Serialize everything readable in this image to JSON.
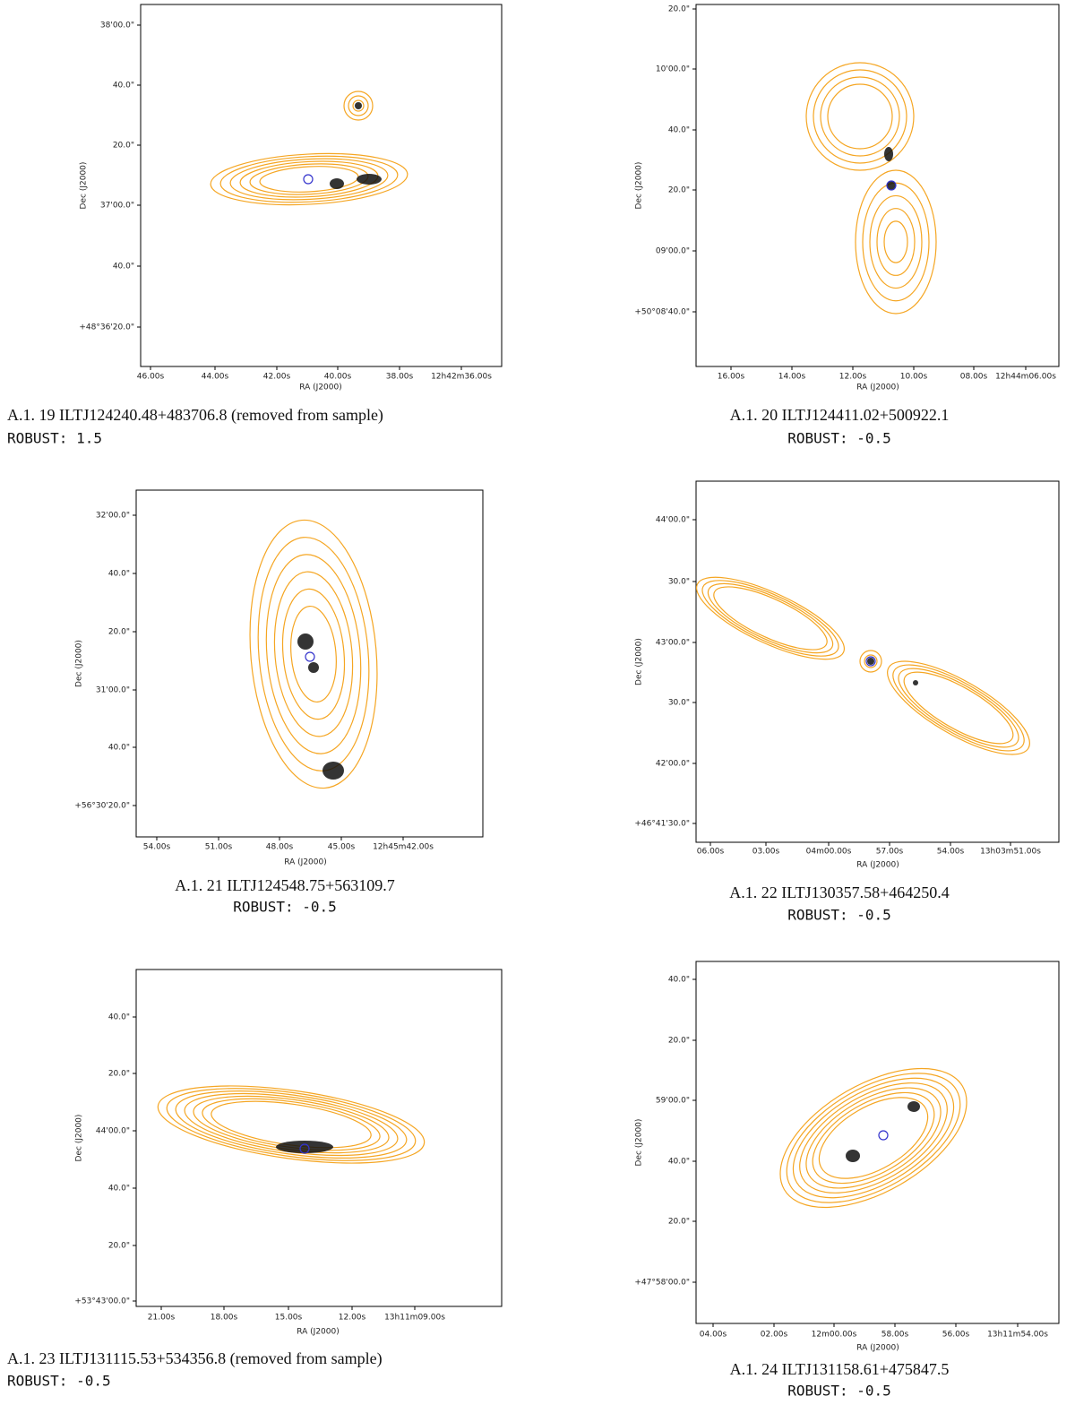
{
  "panels": [
    {
      "yticks": [
        "38'00.0\"",
        "40.0\"",
        "20.0\"",
        "37'00.0\"",
        "40.0\"",
        "+48°36'20.0\""
      ],
      "xticks": [
        "46.00s",
        "44.00s",
        "42.00s",
        "40.00s",
        "38.00s",
        "12h42m36.00s"
      ],
      "xlabel": "RA (J2000)",
      "ylabel": "Dec (J2000)",
      "caption": "A.1. 19 ILTJ124240.48+483706.8 (removed from sample)",
      "robust": "ROBUST: 1.5"
    },
    {
      "yticks": [
        "20.0\"",
        "10'00.0\"",
        "40.0\"",
        "20.0\"",
        "09'00.0\"",
        "+50°08'40.0\""
      ],
      "xticks": [
        "16.00s",
        "14.00s",
        "12.00s",
        "10.00s",
        "08.00s",
        "12h44m06.00s"
      ],
      "xlabel": "RA (J2000)",
      "ylabel": "Dec (J2000)",
      "caption": "A.1. 20 ILTJ124411.02+500922.1",
      "robust": "ROBUST: -0.5"
    },
    {
      "yticks": [
        "32'00.0\"",
        "40.0\"",
        "20.0\"",
        "31'00.0\"",
        "40.0\"",
        "+56°30'20.0\""
      ],
      "xticks": [
        "54.00s",
        "51.00s",
        "48.00s",
        "45.00s",
        "12h45m42.00s"
      ],
      "xlabel": "RA (J2000)",
      "ylabel": "Dec (J2000)",
      "caption": "A.1. 21 ILTJ124548.75+563109.7",
      "robust": "ROBUST: -0.5"
    },
    {
      "yticks": [
        "44'00.0\"",
        "30.0\"",
        "43'00.0\"",
        "30.0\"",
        "42'00.0\"",
        "+46°41'30.0\""
      ],
      "xticks": [
        "06.00s",
        "03.00s",
        "04m00.00s",
        "57.00s",
        "54.00s",
        "13h03m51.00s"
      ],
      "xlabel": "RA (J2000)",
      "ylabel": "Dec (J2000)",
      "caption": "A.1. 22 ILTJ130357.58+464250.4",
      "robust": "ROBUST: -0.5"
    },
    {
      "yticks": [
        "40.0\"",
        "20.0\"",
        "44'00.0\"",
        "40.0\"",
        "20.0\"",
        "+53°43'00.0\""
      ],
      "xticks": [
        "21.00s",
        "18.00s",
        "15.00s",
        "12.00s",
        "13h11m09.00s"
      ],
      "xlabel": "RA (J2000)",
      "ylabel": "Dec (J2000)",
      "caption": "A.1. 23 ILTJ131115.53+534356.8 (removed from sample)",
      "robust": "ROBUST: -0.5"
    },
    {
      "yticks": [
        "40.0\"",
        "20.0\"",
        "59'00.0\"",
        "40.0\"",
        "20.0\"",
        "+47°58'00.0\""
      ],
      "xticks": [
        "04.00s",
        "02.00s",
        "12m00.00s",
        "58.00s",
        "56.00s",
        "13h11m54.00s"
      ],
      "xlabel": "RA (J2000)",
      "ylabel": "Dec (J2000)",
      "caption": "A.1. 24 ILTJ131158.61+475847.5",
      "robust": "ROBUST: -0.5"
    }
  ]
}
